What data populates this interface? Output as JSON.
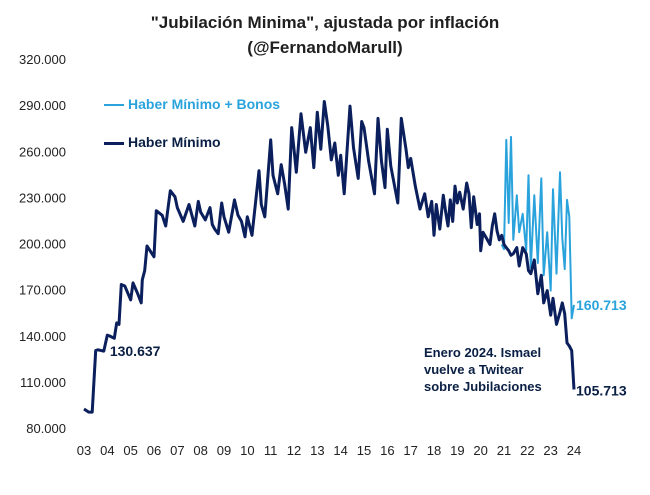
{
  "chart_data": {
    "type": "line",
    "title": "\"Jubilación Minima\", ajustada por inflación",
    "subtitle": "(@FernandoMarull)",
    "ylim": [
      80000,
      320000
    ],
    "yticks": [
      "320.000",
      "290.000",
      "260.000",
      "230.000",
      "200.000",
      "170.000",
      "140.000",
      "110.000",
      "80.000"
    ],
    "yticks_values": [
      320000,
      290000,
      260000,
      230000,
      200000,
      170000,
      140000,
      110000,
      80000
    ],
    "xticks": [
      "03",
      "04",
      "05",
      "06",
      "07",
      "08",
      "09",
      "10",
      "11",
      "12",
      "13",
      "14",
      "15",
      "16",
      "17",
      "18",
      "19",
      "20",
      "21",
      "22",
      "23",
      "24"
    ],
    "xlim": [
      2003.0,
      2024.0
    ],
    "series": [
      {
        "name": "Haber Mínimo",
        "color": "#0a1f5c",
        "x": [
          2003.0,
          2003.2,
          2003.35,
          2003.5,
          2003.6,
          2003.85,
          2004.0,
          2004.1,
          2004.3,
          2004.4,
          2004.5,
          2004.6,
          2004.75,
          2005.0,
          2005.1,
          2005.3,
          2005.45,
          2005.5,
          2005.6,
          2005.7,
          2006.0,
          2006.1,
          2006.35,
          2006.5,
          2006.7,
          2006.9,
          2007.0,
          2007.25,
          2007.5,
          2007.75,
          2007.9,
          2008.0,
          2008.2,
          2008.4,
          2008.5,
          2008.6,
          2008.75,
          2008.9,
          2009.0,
          2009.2,
          2009.45,
          2009.6,
          2009.75,
          2009.9,
          2010.0,
          2010.2,
          2010.5,
          2010.6,
          2010.75,
          2011.0,
          2011.1,
          2011.3,
          2011.45,
          2011.6,
          2011.75,
          2011.9,
          2012.0,
          2012.1,
          2012.3,
          2012.5,
          2012.7,
          2012.85,
          2013.0,
          2013.15,
          2013.3,
          2013.45,
          2013.6,
          2013.75,
          2013.9,
          2014.0,
          2014.15,
          2014.4,
          2014.55,
          2014.75,
          2014.9,
          2015.0,
          2015.2,
          2015.45,
          2015.6,
          2015.75,
          2015.9,
          2016.0,
          2016.15,
          2016.45,
          2016.6,
          2016.8,
          2016.9,
          2017.0,
          2017.2,
          2017.4,
          2017.6,
          2017.75,
          2017.9,
          2018.0,
          2018.1,
          2018.25,
          2018.4,
          2018.5,
          2018.6,
          2018.7,
          2018.8,
          2018.9,
          2019.0,
          2019.1,
          2019.25,
          2019.4,
          2019.5,
          2019.6,
          2019.7,
          2019.85,
          2019.95,
          2020.0,
          2020.1,
          2020.25,
          2020.4,
          2020.5,
          2020.6,
          2020.7,
          2020.8,
          2020.9,
          2021.0,
          2021.1,
          2021.2,
          2021.3,
          2021.4,
          2021.55,
          2021.65,
          2021.8,
          2021.95,
          2022.05,
          2022.15,
          2022.3,
          2022.45,
          2022.6,
          2022.7,
          2022.85,
          2023.0,
          2023.1,
          2023.25,
          2023.4,
          2023.5,
          2023.6,
          2023.7,
          2023.8,
          2023.9,
          2024.0
        ],
        "values": [
          93000,
          91000,
          91000,
          131000,
          131500,
          130637,
          141000,
          140500,
          139000,
          149000,
          148000,
          174000,
          173000,
          164000,
          175000,
          168000,
          162000,
          177000,
          183000,
          199000,
          192000,
          222000,
          219000,
          212000,
          235000,
          231000,
          224000,
          215000,
          226000,
          212000,
          228000,
          221000,
          216000,
          224000,
          213000,
          210000,
          207000,
          227000,
          218000,
          208000,
          229000,
          219000,
          215000,
          205000,
          218000,
          206000,
          248000,
          226000,
          218000,
          268000,
          245000,
          233000,
          252000,
          239000,
          223000,
          276000,
          262000,
          247000,
          285000,
          260000,
          276000,
          250000,
          286000,
          262000,
          293000,
          277000,
          255000,
          266000,
          245000,
          258000,
          233000,
          290000,
          263000,
          243000,
          280000,
          276000,
          254000,
          233000,
          282000,
          254000,
          237000,
          275000,
          251000,
          227000,
          282000,
          262000,
          250000,
          256000,
          238000,
          223000,
          233000,
          218000,
          228000,
          206000,
          226000,
          210000,
          232000,
          221000,
          212000,
          229000,
          215000,
          238000,
          227000,
          234000,
          223000,
          240000,
          233000,
          211000,
          231000,
          213000,
          220000,
          196000,
          208000,
          204000,
          200000,
          212000,
          220000,
          209000,
          203000,
          206000,
          200000,
          198000,
          196000,
          193000,
          194000,
          198000,
          186000,
          198000,
          194000,
          183000,
          181000,
          190000,
          168000,
          180000,
          162000,
          170000,
          154000,
          165000,
          148000,
          156000,
          162000,
          155000,
          136000,
          134000,
          131000,
          105713
        ],
        "end_label": "105.713",
        "start_label": "130.637"
      },
      {
        "name": "Haber Mínimo + Bonos",
        "color": "#2aa3dc",
        "x": [
          2020.9,
          2021.0,
          2021.1,
          2021.2,
          2021.3,
          2021.4,
          2021.55,
          2021.65,
          2021.8,
          2021.95,
          2022.05,
          2022.15,
          2022.3,
          2022.45,
          2022.6,
          2022.7,
          2022.85,
          2023.0,
          2023.1,
          2023.25,
          2023.4,
          2023.5,
          2023.6,
          2023.7,
          2023.8,
          2023.9,
          2024.0
        ],
        "values": [
          200000,
          197000,
          268000,
          214000,
          270000,
          203000,
          232000,
          208000,
          220000,
          196000,
          245000,
          185000,
          232000,
          188000,
          243000,
          180000,
          208000,
          170000,
          236000,
          181000,
          247000,
          204000,
          184000,
          229000,
          218000,
          152000,
          160713
        ],
        "end_label": "160.713"
      }
    ],
    "legend_placement": "top-left",
    "annotation": [
      "Enero 2024. Ismael",
      "vuelve a Twitear",
      "sobre Jubilaciones"
    ],
    "grid": false
  }
}
